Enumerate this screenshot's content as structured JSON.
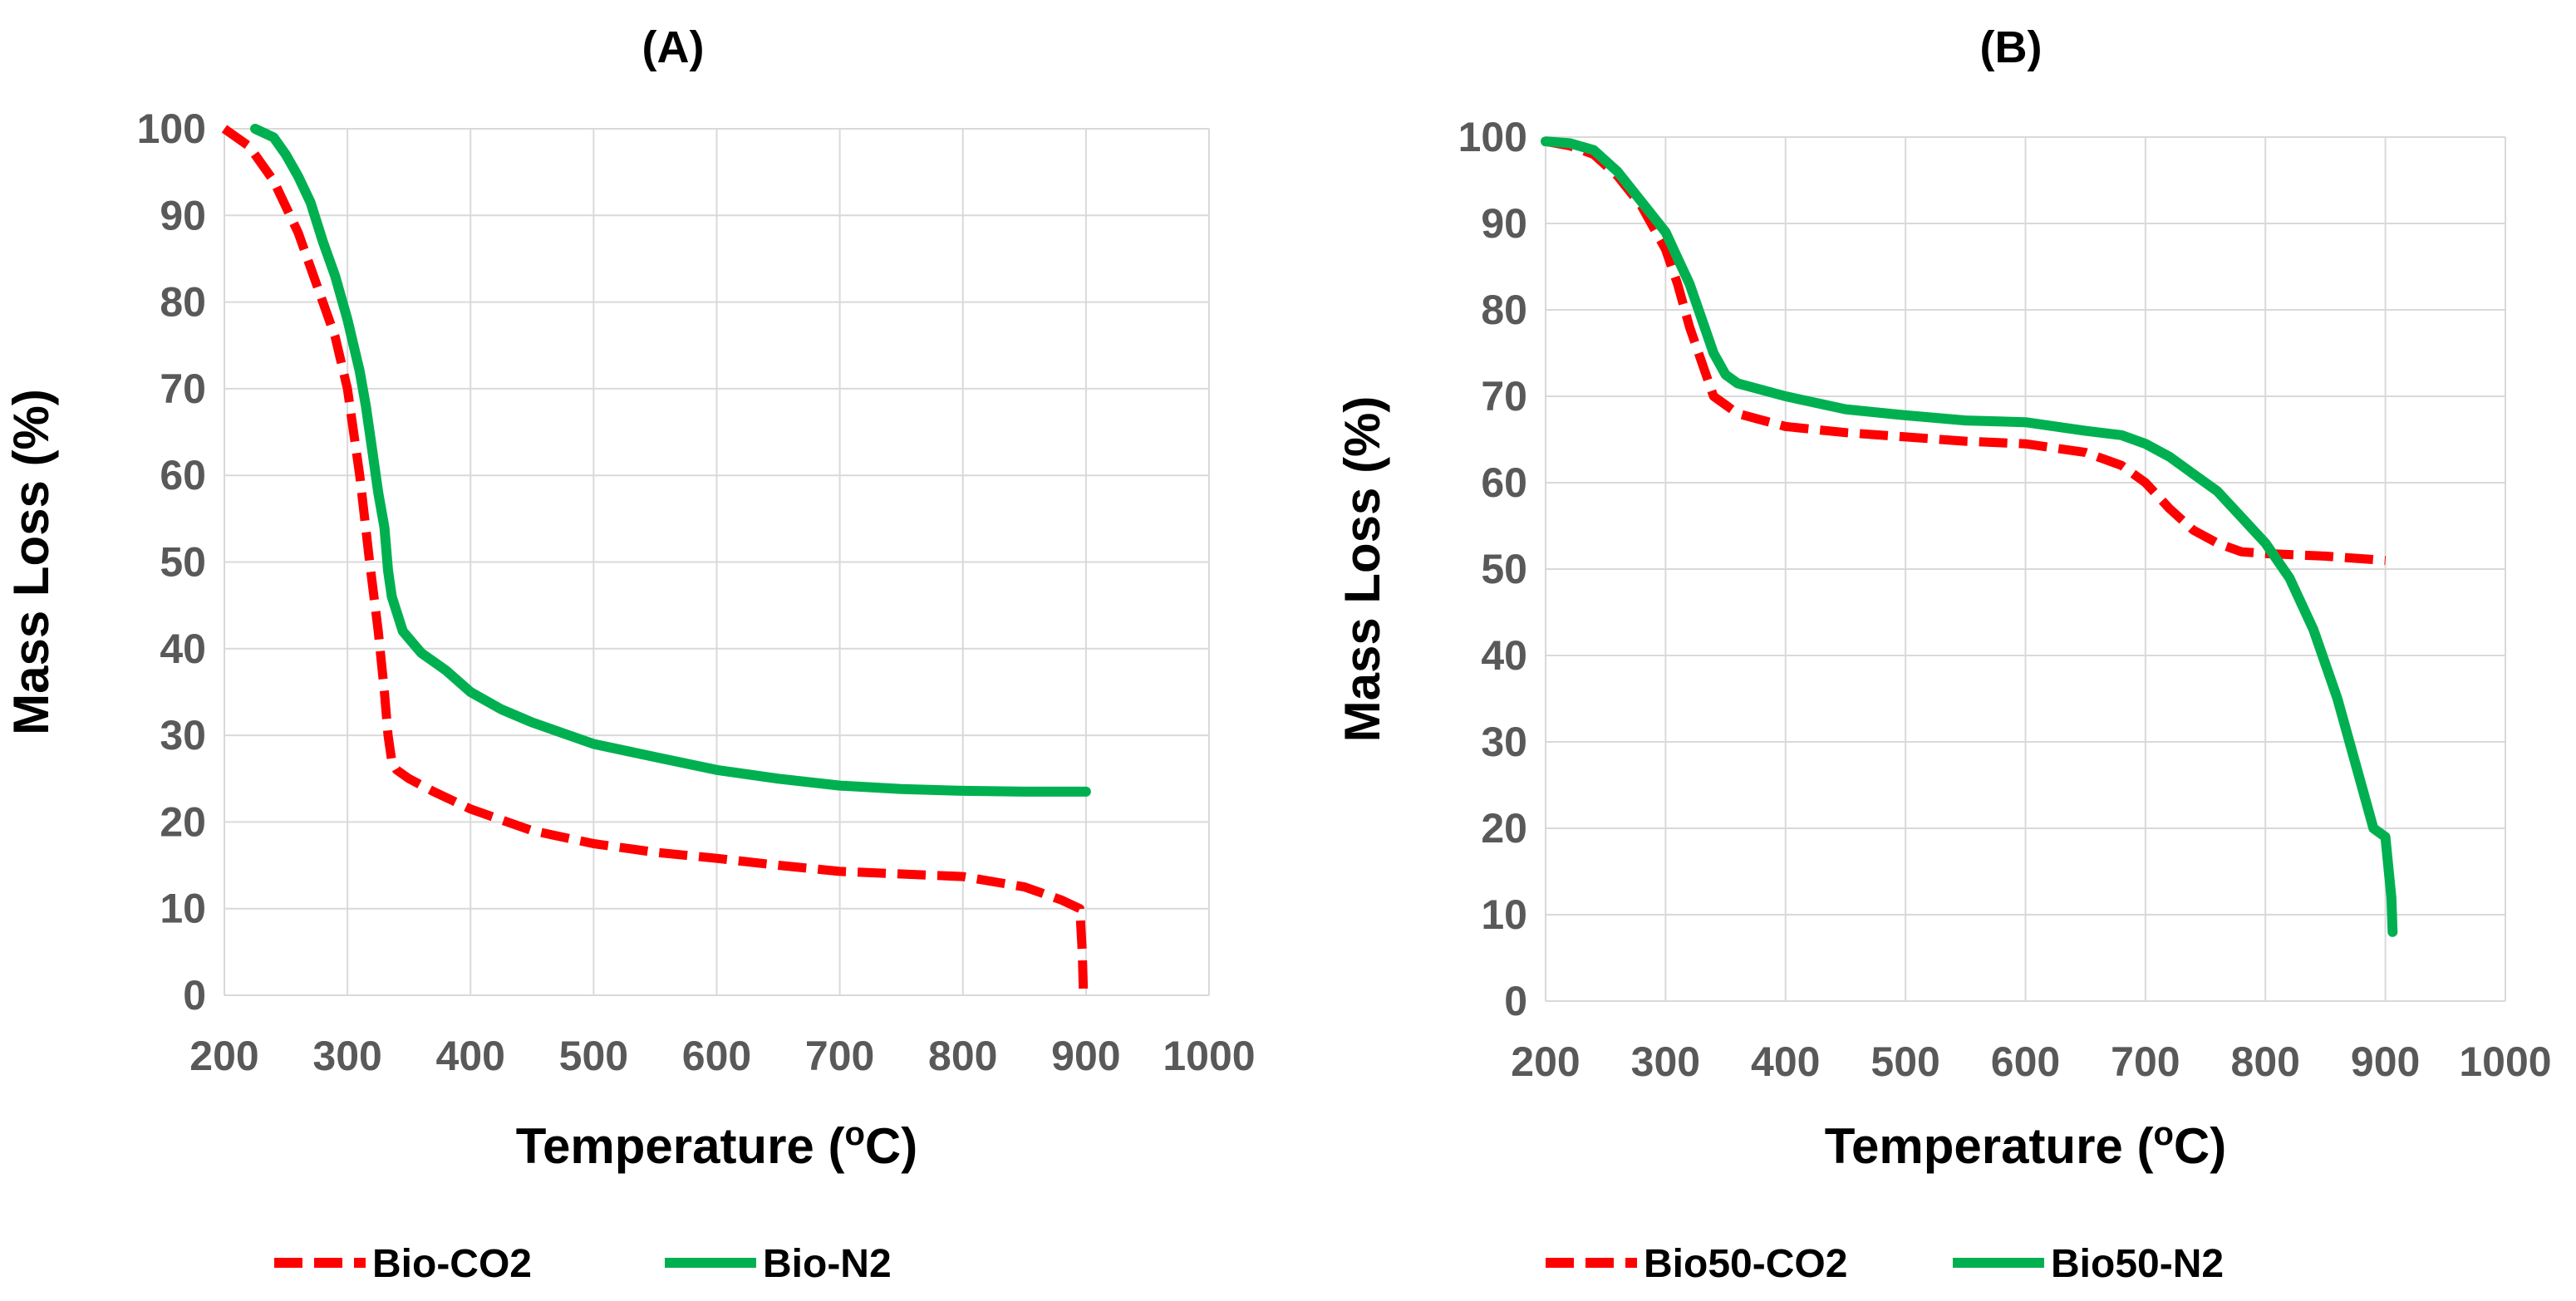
{
  "chart_data": [
    {
      "type": "line",
      "title": "(A)",
      "xlabel": "Temperature (oC)",
      "xlabel_parts": {
        "main": "Temperature (",
        "sup": "o",
        "tail": "C)"
      },
      "ylabel": "Mass Loss (%)",
      "xlim": [
        200,
        1000
      ],
      "ylim": [
        0,
        100
      ],
      "xticks": [
        200,
        300,
        400,
        500,
        600,
        700,
        800,
        900,
        1000
      ],
      "yticks": [
        0,
        10,
        20,
        30,
        40,
        50,
        60,
        70,
        80,
        90,
        100
      ],
      "grid": true,
      "legend_position": "bottom",
      "series": [
        {
          "name": "Bio-CO2",
          "color": "#ff0000",
          "style": "dashed",
          "x": [
            200,
            220,
            240,
            260,
            275,
            290,
            300,
            310,
            318,
            325,
            330,
            333,
            336,
            340,
            350,
            370,
            400,
            450,
            500,
            550,
            600,
            650,
            700,
            750,
            800,
            850,
            880,
            895,
            897,
            898
          ],
          "y": [
            100,
            98,
            94,
            88,
            82,
            76,
            70,
            60,
            50,
            42,
            35,
            30,
            27,
            26,
            25,
            23.5,
            21.5,
            19,
            17.5,
            16.5,
            15.8,
            15,
            14.3,
            14,
            13.7,
            12.5,
            11,
            10,
            5,
            0
          ]
        },
        {
          "name": "Bio-N2",
          "color": "#00b050",
          "style": "solid",
          "x": [
            225,
            240,
            250,
            260,
            270,
            280,
            290,
            300,
            310,
            315,
            320,
            325,
            330,
            333,
            336,
            345,
            360,
            380,
            400,
            425,
            450,
            500,
            550,
            600,
            650,
            700,
            750,
            800,
            850,
            900
          ],
          "y": [
            100,
            99,
            97,
            94.5,
            91.5,
            87,
            83,
            78,
            72,
            68,
            63,
            58,
            54,
            49,
            46,
            42,
            39.5,
            37.5,
            35,
            33,
            31.5,
            29,
            27.5,
            26,
            25,
            24.2,
            23.8,
            23.6,
            23.5,
            23.5
          ]
        }
      ]
    },
    {
      "type": "line",
      "title": "(B)",
      "xlabel": "Temperature (oC)",
      "xlabel_parts": {
        "main": "Temperature (",
        "sup": "o",
        "tail": "C)"
      },
      "ylabel": "Mass Loss (%)",
      "xlim": [
        200,
        1000
      ],
      "ylim": [
        0,
        100
      ],
      "xticks": [
        200,
        300,
        400,
        500,
        600,
        700,
        800,
        900,
        1000
      ],
      "yticks": [
        0,
        10,
        20,
        30,
        40,
        50,
        60,
        70,
        80,
        90,
        100
      ],
      "grid": true,
      "legend_position": "bottom",
      "series": [
        {
          "name": "Bio50-CO2",
          "color": "#ff0000",
          "style": "dashed",
          "x": [
            200,
            220,
            240,
            260,
            280,
            300,
            310,
            320,
            330,
            340,
            350,
            360,
            400,
            450,
            500,
            550,
            600,
            650,
            680,
            700,
            720,
            740,
            760,
            780,
            800,
            850,
            900
          ],
          "y": [
            99.5,
            99,
            98,
            95.5,
            92,
            87,
            83,
            78,
            74,
            70,
            69,
            68,
            66.5,
            65.8,
            65.3,
            64.8,
            64.5,
            63.5,
            62,
            60,
            57,
            54.5,
            53,
            52,
            51.8,
            51.5,
            51
          ]
        },
        {
          "name": "Bio50-N2",
          "color": "#00b050",
          "style": "solid",
          "x": [
            200,
            220,
            240,
            260,
            280,
            300,
            310,
            320,
            330,
            340,
            350,
            360,
            400,
            450,
            500,
            550,
            600,
            650,
            680,
            700,
            720,
            740,
            760,
            780,
            800,
            820,
            840,
            860,
            880,
            890,
            900,
            905,
            906
          ],
          "y": [
            99.5,
            99.3,
            98.5,
            96,
            92.5,
            89,
            86,
            83,
            79,
            75,
            72.5,
            71.5,
            70,
            68.5,
            67.8,
            67.2,
            67,
            66,
            65.5,
            64.5,
            63,
            61,
            59,
            56,
            53,
            49,
            43,
            35,
            25,
            20,
            19,
            12,
            8
          ]
        }
      ]
    }
  ]
}
